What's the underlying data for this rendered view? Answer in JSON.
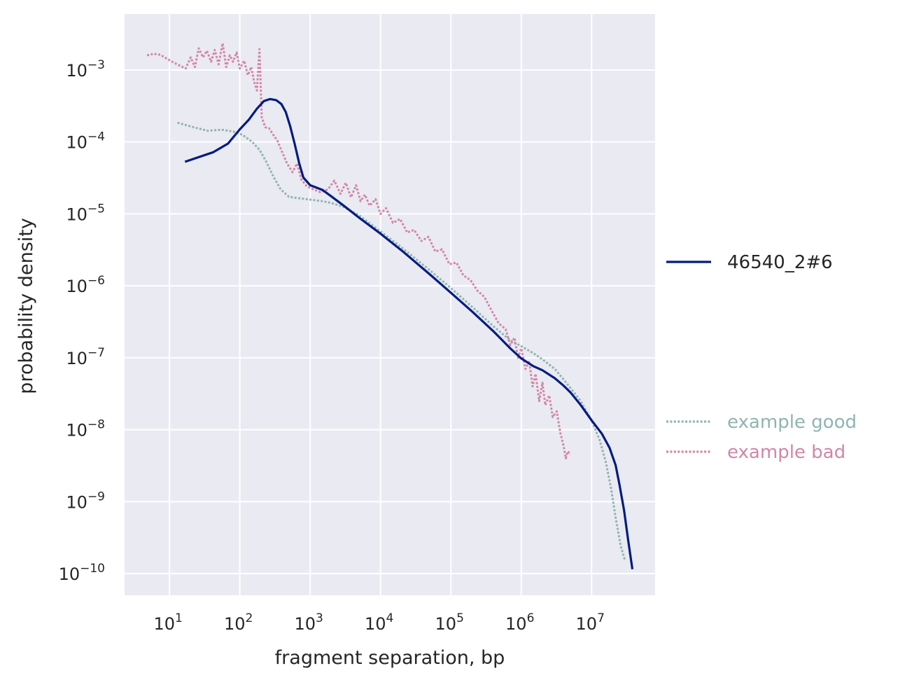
{
  "chart_data": {
    "type": "line",
    "title": "",
    "xlabel": "fragment separation, bp",
    "ylabel": "probability density",
    "x_scale": "log",
    "y_scale": "log",
    "xlim": [
      2.3,
      80000000
    ],
    "ylim": [
      5e-11,
      0.006
    ],
    "grid": true,
    "background": "#eaeaf2",
    "x_ticks": [
      {
        "value": 10,
        "base": "10",
        "exp": "1"
      },
      {
        "value": 100,
        "base": "10",
        "exp": "2"
      },
      {
        "value": 1000,
        "base": "10",
        "exp": "3"
      },
      {
        "value": 10000,
        "base": "10",
        "exp": "4"
      },
      {
        "value": 100000,
        "base": "10",
        "exp": "5"
      },
      {
        "value": 1000000,
        "base": "10",
        "exp": "6"
      },
      {
        "value": 10000000,
        "base": "10",
        "exp": "7"
      }
    ],
    "y_ticks": [
      {
        "value": 0.001,
        "base": "10",
        "exp": "−3"
      },
      {
        "value": 0.0001,
        "base": "10",
        "exp": "−4"
      },
      {
        "value": 1e-05,
        "base": "10",
        "exp": "−5"
      },
      {
        "value": 1e-06,
        "base": "10",
        "exp": "−6"
      },
      {
        "value": 1e-07,
        "base": "10",
        "exp": "−7"
      },
      {
        "value": 1e-08,
        "base": "10",
        "exp": "−8"
      },
      {
        "value": 1e-09,
        "base": "10",
        "exp": "−9"
      },
      {
        "value": 1e-10,
        "base": "10",
        "exp": "−10"
      }
    ],
    "legend_placement": "right",
    "series": [
      {
        "name": "46540_2#6",
        "color": "#001c7f",
        "style": "solid",
        "points": [
          [
            16.6,
            5.3e-05
          ],
          [
            42,
            7.2e-05
          ],
          [
            68,
            9.5e-05
          ],
          [
            100,
            0.00015
          ],
          [
            135,
            0.000205
          ],
          [
            175,
            0.00029
          ],
          [
            220,
            0.00037
          ],
          [
            270,
            0.000395
          ],
          [
            330,
            0.00038
          ],
          [
            390,
            0.000335
          ],
          [
            450,
            0.00026
          ],
          [
            520,
            0.000165
          ],
          [
            600,
            9.5e-05
          ],
          [
            700,
            5e-05
          ],
          [
            800,
            3.2e-05
          ],
          [
            1000,
            2.5e-05
          ],
          [
            1500,
            2.15e-05
          ],
          [
            2000,
            1.75e-05
          ],
          [
            3000,
            1.3e-05
          ],
          [
            5000,
            8.8e-06
          ],
          [
            10000,
            5.3e-06
          ],
          [
            20000,
            3.1e-06
          ],
          [
            50000,
            1.45e-06
          ],
          [
            100000,
            8e-07
          ],
          [
            200000,
            4.4e-07
          ],
          [
            400000,
            2.35e-07
          ],
          [
            700000,
            1.35e-07
          ],
          [
            1000000,
            9.8e-08
          ],
          [
            1500000,
            7.6e-08
          ],
          [
            2000000,
            6.7e-08
          ],
          [
            3000000,
            5.2e-08
          ],
          [
            4000000,
            4.1e-08
          ],
          [
            5000000,
            3.3e-08
          ],
          [
            7000000,
            2.2e-08
          ],
          [
            10000000,
            1.35e-08
          ],
          [
            14000000,
            8.8e-09
          ],
          [
            18000000,
            5.6e-09
          ],
          [
            22000000,
            3.2e-09
          ],
          [
            25000000,
            1.7e-09
          ],
          [
            29000000,
            7.5e-10
          ],
          [
            33000000,
            3e-10
          ],
          [
            38000000,
            1.15e-10
          ]
        ]
      },
      {
        "name": "example good",
        "color": "#8fb5b0",
        "style": "dotted",
        "points": [
          [
            13,
            0.000185
          ],
          [
            22,
            0.00016
          ],
          [
            35,
            0.000143
          ],
          [
            55,
            0.000148
          ],
          [
            80,
            0.00014
          ],
          [
            110,
            0.000125
          ],
          [
            150,
            0.0001
          ],
          [
            190,
            7.8e-05
          ],
          [
            240,
            5.2e-05
          ],
          [
            300,
            3.3e-05
          ],
          [
            380,
            2.2e-05
          ],
          [
            500,
            1.72e-05
          ],
          [
            700,
            1.65e-05
          ],
          [
            1000,
            1.58e-05
          ],
          [
            1500,
            1.5e-05
          ],
          [
            2000,
            1.42e-05
          ],
          [
            3000,
            1.25e-05
          ],
          [
            5000,
            9.5e-06
          ],
          [
            10000,
            5.7e-06
          ],
          [
            20000,
            3.4e-06
          ],
          [
            50000,
            1.65e-06
          ],
          [
            100000,
            9.3e-07
          ],
          [
            200000,
            5.1e-07
          ],
          [
            400000,
            2.75e-07
          ],
          [
            700000,
            1.75e-07
          ],
          [
            1000000,
            1.45e-07
          ],
          [
            1500000,
            1.15e-07
          ],
          [
            2000000,
            9.5e-08
          ],
          [
            3000000,
            7e-08
          ],
          [
            4000000,
            5e-08
          ],
          [
            5000000,
            3.8e-08
          ],
          [
            7000000,
            2.5e-08
          ],
          [
            10000000,
            1.35e-08
          ],
          [
            13000000,
            7.2e-09
          ],
          [
            16000000,
            3.5e-09
          ],
          [
            19000000,
            1.5e-09
          ],
          [
            22000000,
            6e-10
          ],
          [
            26000000,
            2.4e-10
          ],
          [
            30000000,
            1.5e-10
          ]
        ]
      },
      {
        "name": "example bad",
        "color": "#d386a6",
        "style": "dotted",
        "points": [
          [
            4.8,
            0.0016
          ],
          [
            6,
            0.00168
          ],
          [
            7.5,
            0.00162
          ],
          [
            9,
            0.00145
          ],
          [
            11,
            0.0013
          ],
          [
            14,
            0.00115
          ],
          [
            17,
            0.00105
          ],
          [
            20,
            0.0015
          ],
          [
            23,
            0.0011
          ],
          [
            26,
            0.002
          ],
          [
            30,
            0.0015
          ],
          [
            34,
            0.00185
          ],
          [
            39,
            0.0013
          ],
          [
            44,
            0.0019
          ],
          [
            50,
            0.0012
          ],
          [
            57,
            0.00235
          ],
          [
            64,
            0.0011
          ],
          [
            72,
            0.0016
          ],
          [
            80,
            0.0013
          ],
          [
            90,
            0.00175
          ],
          [
            100,
            0.00105
          ],
          [
            115,
            0.00135
          ],
          [
            130,
            0.00085
          ],
          [
            145,
            0.0011
          ],
          [
            160,
            0.00068
          ],
          [
            175,
            0.00052
          ],
          [
            190,
            0.00195
          ],
          [
            205,
            0.00022
          ],
          [
            230,
            0.00016
          ],
          [
            260,
            0.000155
          ],
          [
            300,
            0.000125
          ],
          [
            340,
            0.000105
          ],
          [
            400,
            7.2e-05
          ],
          [
            470,
            5e-05
          ],
          [
            560,
            3.8e-05
          ],
          [
            650,
            5e-05
          ],
          [
            750,
            3e-05
          ],
          [
            900,
            2.4e-05
          ],
          [
            1100,
            2.2e-05
          ],
          [
            1400,
            2e-05
          ],
          [
            1800,
            2.2e-05
          ],
          [
            2200,
            2.9e-05
          ],
          [
            2700,
            1.9e-05
          ],
          [
            3200,
            2.7e-05
          ],
          [
            3800,
            1.7e-05
          ],
          [
            4500,
            2.5e-05
          ],
          [
            5200,
            1.5e-05
          ],
          [
            6000,
            1.85e-05
          ],
          [
            7000,
            1.3e-05
          ],
          [
            8500,
            1.6e-05
          ],
          [
            10000,
            1e-05
          ],
          [
            12000,
            1.2e-05
          ],
          [
            15000,
            7.5e-06
          ],
          [
            19000,
            8.5e-06
          ],
          [
            24000,
            5.5e-06
          ],
          [
            30000,
            6e-06
          ],
          [
            38000,
            4.2e-06
          ],
          [
            48000,
            4.8e-06
          ],
          [
            60000,
            3e-06
          ],
          [
            75000,
            3.2e-06
          ],
          [
            95000,
            2e-06
          ],
          [
            120000,
            2.1e-06
          ],
          [
            150000,
            1.4e-06
          ],
          [
            190000,
            1.2e-06
          ],
          [
            240000,
            8.5e-07
          ],
          [
            300000,
            7e-07
          ],
          [
            380000,
            4.5e-07
          ],
          [
            480000,
            3e-07
          ],
          [
            600000,
            2.5e-07
          ],
          [
            700000,
            1.5e-07
          ],
          [
            800000,
            1.9e-07
          ],
          [
            900000,
            1e-07
          ],
          [
            1000000,
            1.35e-07
          ],
          [
            1150000,
            7e-08
          ],
          [
            1300000,
            9e-08
          ],
          [
            1450000,
            4e-08
          ],
          [
            1600000,
            6e-08
          ],
          [
            1800000,
            2.5e-08
          ],
          [
            2000000,
            4.5e-08
          ],
          [
            2200000,
            2.2e-08
          ],
          [
            2500000,
            3e-08
          ],
          [
            2800000,
            1.5e-08
          ],
          [
            3200000,
            1.8e-08
          ],
          [
            3600000,
            9e-09
          ],
          [
            4000000,
            6e-09
          ],
          [
            4300000,
            4e-09
          ],
          [
            4600000,
            5e-09
          ],
          [
            5000000,
            4.5e-09
          ]
        ]
      }
    ]
  }
}
